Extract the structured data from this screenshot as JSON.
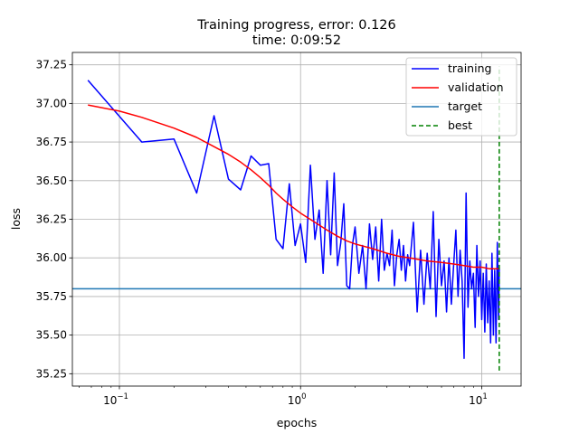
{
  "chart_data": {
    "type": "line",
    "title": "Training progress, error: 0.126",
    "subtitle": "time: 0:09:52",
    "xlabel": "epochs",
    "ylabel": "loss",
    "xscale": "log",
    "xlim": [
      0.055,
      16.5
    ],
    "ylim": [
      35.17,
      37.33
    ],
    "grid": true,
    "legend_position": "upper right",
    "x_ticks": [
      {
        "base": "10",
        "exp": "−1",
        "value": 0.1
      },
      {
        "base": "10",
        "exp": "0",
        "value": 1
      },
      {
        "base": "10",
        "exp": "1",
        "value": 10
      }
    ],
    "y_ticks": [
      "35.25",
      "35.50",
      "35.75",
      "36.00",
      "36.25",
      "36.50",
      "36.75",
      "37.00",
      "37.25"
    ],
    "legend": [
      "training",
      "validation",
      "target",
      "best"
    ],
    "colors": {
      "training": "#0000ff",
      "validation": "#ff0000",
      "target": "#1f77b4",
      "best": "#008000"
    },
    "series": [
      {
        "name": "training",
        "x": [
          0.067,
          0.133,
          0.2,
          0.267,
          0.333,
          0.4,
          0.467,
          0.533,
          0.6,
          0.667,
          0.733,
          0.8,
          0.867,
          0.933,
          1.0,
          1.067,
          1.133,
          1.2,
          1.267,
          1.333,
          1.4,
          1.467,
          1.533,
          1.6,
          1.667,
          1.733,
          1.8,
          1.867,
          1.933,
          2.0,
          2.1,
          2.2,
          2.3,
          2.4,
          2.5,
          2.6,
          2.7,
          2.8,
          2.9,
          3.0,
          3.1,
          3.2,
          3.3,
          3.4,
          3.5,
          3.6,
          3.7,
          3.8,
          3.9,
          4.0,
          4.2,
          4.4,
          4.6,
          4.8,
          5.0,
          5.2,
          5.4,
          5.6,
          5.8,
          6.0,
          6.2,
          6.4,
          6.6,
          6.8,
          7.0,
          7.2,
          7.4,
          7.6,
          7.8,
          8.0,
          8.2,
          8.4,
          8.6,
          8.8,
          9.0,
          9.2,
          9.4,
          9.6,
          9.8,
          10.0,
          10.2,
          10.4,
          10.6,
          10.8,
          11.0,
          11.2,
          11.4,
          11.6,
          11.8,
          12.0,
          12.2,
          12.4,
          12.5
        ],
        "y": [
          37.15,
          36.75,
          36.77,
          36.42,
          36.92,
          36.51,
          36.44,
          36.66,
          36.6,
          36.61,
          36.12,
          36.06,
          36.48,
          36.08,
          36.22,
          35.97,
          36.6,
          36.12,
          36.31,
          35.9,
          36.5,
          36.02,
          36.55,
          35.95,
          36.1,
          36.35,
          35.82,
          35.8,
          36.08,
          36.2,
          35.9,
          36.08,
          35.8,
          36.22,
          35.99,
          36.2,
          35.85,
          36.25,
          35.92,
          36.03,
          35.95,
          36.18,
          35.82,
          36.02,
          36.12,
          35.92,
          36.08,
          35.85,
          36.02,
          35.95,
          36.23,
          35.65,
          36.05,
          35.7,
          36.03,
          35.8,
          36.3,
          35.62,
          36.12,
          35.82,
          35.98,
          35.65,
          36.0,
          35.7,
          35.95,
          36.18,
          35.75,
          36.05,
          35.85,
          35.35,
          36.42,
          35.68,
          35.98,
          35.8,
          35.9,
          35.55,
          36.08,
          35.75,
          35.98,
          35.6,
          35.9,
          35.52,
          35.96,
          35.58,
          35.85,
          35.45,
          36.03,
          35.5,
          35.92,
          35.45,
          36.1,
          35.6,
          35.93
        ]
      },
      {
        "name": "validation",
        "x": [
          0.067,
          0.1,
          0.133,
          0.2,
          0.267,
          0.333,
          0.4,
          0.467,
          0.533,
          0.6,
          0.667,
          0.733,
          0.8,
          0.9,
          1.0,
          1.2,
          1.4,
          1.6,
          1.8,
          2.0,
          2.5,
          3.0,
          3.5,
          4.0,
          5.0,
          6.0,
          7.0,
          8.0,
          9.0,
          10.0,
          11.0,
          12.0,
          12.5
        ],
        "y": [
          36.99,
          36.95,
          36.91,
          36.84,
          36.78,
          36.72,
          36.67,
          36.62,
          36.57,
          36.52,
          36.47,
          36.42,
          36.38,
          36.33,
          36.29,
          36.23,
          36.18,
          36.14,
          36.11,
          36.09,
          36.06,
          36.03,
          36.01,
          36.0,
          35.98,
          35.97,
          35.96,
          35.95,
          35.94,
          35.94,
          35.93,
          35.93,
          35.93
        ]
      },
      {
        "name": "target",
        "y": 35.8
      },
      {
        "name": "best",
        "x": 12.5,
        "y_range": [
          35.27,
          37.24
        ]
      }
    ]
  }
}
